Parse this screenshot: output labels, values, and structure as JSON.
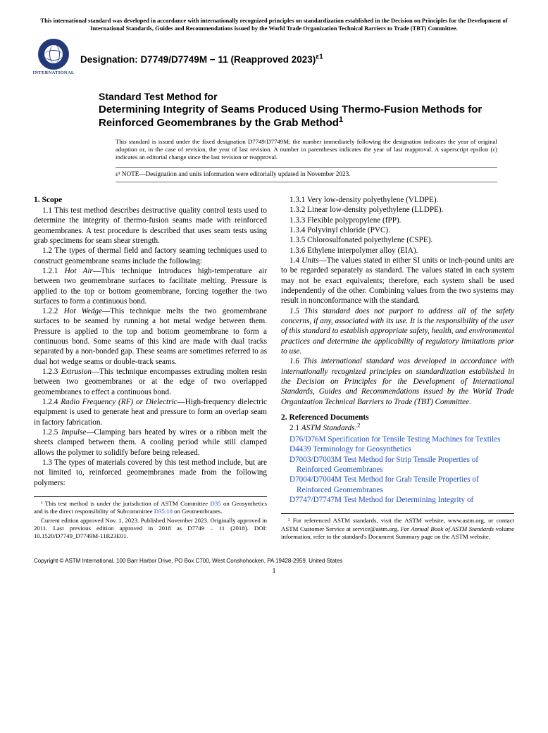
{
  "top_notice": "This international standard was developed in accordance with internationally recognized principles on standardization established in the Decision on Principles for the Development of International Standards, Guides and Recommendations issued by the World Trade Organization Technical Barriers to Trade (TBT) Committee.",
  "logo_text": "INTERNATIONAL",
  "designation": "Designation: D7749/D7749M − 11 (Reapproved 2023)",
  "designation_sup": "ε1",
  "title_lead": "Standard Test Method for",
  "title_main": "Determining Integrity of Seams Produced Using Thermo-Fusion Methods for Reinforced Geomembranes by the Grab Method",
  "title_sup": "1",
  "issued": "This standard is issued under the fixed designation D7749/D7749M; the number immediately following the designation indicates the year of original adoption or, in the case of revision, the year of last revision. A number in parentheses indicates the year of last reapproval. A superscript epsilon (ε) indicates an editorial change since the last revision or reapproval.",
  "eps_note": "ε¹ NOTE—Designation and units information were editorially updated in November 2023.",
  "sec1_head": "1. Scope",
  "p1_1": "1.1 This test method describes destructive quality control tests used to determine the integrity of thermo-fusion seams made with reinforced geomembranes. A test procedure is described that uses seam tests using grab specimens for seam shear strength.",
  "p1_2": "1.2 The types of thermal field and factory seaming techniques used to construct geomembrane seams include the following:",
  "p1_2_1_num": "1.2.1 ",
  "p1_2_1_label": "Hot Air",
  "p1_2_1_body": "—This technique introduces high-temperature air between two geomembrane surfaces to facilitate melting. Pressure is applied to the top or bottom geomembrane, forcing together the two surfaces to form a continuous bond.",
  "p1_2_2_num": "1.2.2 ",
  "p1_2_2_label": "Hot Wedge",
  "p1_2_2_body": "—This technique melts the two geomembrane surfaces to be seamed by running a hot metal wedge between them. Pressure is applied to the top and bottom geomembrane to form a continuous bond. Some seams of this kind are made with dual tracks separated by a non-bonded gap. These seams are sometimes referred to as dual hot wedge seams or double-track seams.",
  "p1_2_3_num": "1.2.3 ",
  "p1_2_3_label": "Extrusion",
  "p1_2_3_body": "—This technique encompasses extruding molten resin between two geomembranes or at the edge of two overlapped geomembranes to effect a continuous bond.",
  "p1_2_4_num": "1.2.4 ",
  "p1_2_4_label": "Radio Frequency (RF) or Dielectric",
  "p1_2_4_body": "—High-frequency dielectric equipment is used to generate heat and pressure to form an overlap seam in factory fabrication.",
  "p1_2_5_num": "1.2.5 ",
  "p1_2_5_label": "Impulse",
  "p1_2_5_body": "—Clamping bars heated by wires or a ribbon melt the sheets clamped between them. A cooling period while still clamped allows the polymer to solidify before being released.",
  "p1_3": "1.3 The types of materials covered by this test method include, but are not limited to, reinforced geomembranes made from the following polymers:",
  "p1_3_1": "1.3.1 Very low-density polyethylene (VLDPE).",
  "p1_3_2": "1.3.2 Linear low-density polyethylene (LLDPE).",
  "p1_3_3": "1.3.3 Flexible polypropylene (fPP).",
  "p1_3_4": "1.3.4 Polyvinyl chloride (PVC).",
  "p1_3_5": "1.3.5 Chlorosulfonated polyethylene (CSPE).",
  "p1_3_6": "1.3.6 Ethylene interpolymer alloy (EIA).",
  "p1_4_num": "1.4 ",
  "p1_4_label": "Units",
  "p1_4_body": "—The values stated in either SI units or inch-pound units are to be regarded separately as standard. The values stated in each system may not be exact equivalents; therefore, each system shall be used independently of the other. Combining values from the two systems may result in nonconformance with the standard.",
  "p1_5": "1.5 This standard does not purport to address all of the safety concerns, if any, associated with its use. It is the responsibility of the user of this standard to establish appropriate safety, health, and environmental practices and determine the applicability of regulatory limitations prior to use.",
  "p1_6": "1.6 This international standard was developed in accordance with internationally recognized principles on standardization established in the Decision on Principles for the Development of International Standards, Guides and Recommendations issued by the World Trade Organization Technical Barriers to Trade (TBT) Committee.",
  "sec2_head": "2. Referenced Documents",
  "p2_1_num": "2.1 ",
  "p2_1_label": "ASTM Standards:",
  "p2_1_sup": "2",
  "refs": [
    {
      "code": "D76/D76M",
      "title": "Specification for Tensile Testing Machines for Textiles"
    },
    {
      "code": "D4439",
      "title": "Terminology for Geosynthetics"
    },
    {
      "code": "D7003/D7003M",
      "title": "Test Method for Strip Tensile Properties of Reinforced Geomembranes"
    },
    {
      "code": "D7004/D7004M",
      "title": "Test Method for Grab Tensile Properties of Reinforced Geomembranes"
    },
    {
      "code": "D7747/D7747M",
      "title": "Test Method for Determining Integrity of"
    }
  ],
  "fn1_a": "¹ This test method is under the jurisdiction of ASTM Committee ",
  "fn1_link1": "D35",
  "fn1_b": " on Geosynthetics and is the direct responsibility of Subcommittee ",
  "fn1_link2": "D35.10",
  "fn1_c": " on Geomembranes.",
  "fn1_d": "Current edition approved Nov. 1, 2023. Published November 2023. Originally approved in 2011. Last previous edition approved in 2018 as D7749 – 11 (2018). DOI: 10.1520/D7749_D7749M-11R23E01.",
  "fn2": "² For referenced ASTM standards, visit the ASTM website, www.astm.org, or contact ASTM Customer Service at service@astm.org. For Annual Book of ASTM Standards volume information, refer to the standard's Document Summary page on the ASTM website.",
  "fn2_ital": "Annual Book of ASTM Standards",
  "copyright": "Copyright © ASTM International, 100 Barr Harbor Drive, PO Box C700, West Conshohocken, PA 19428-2959. United States",
  "pagenum": "1"
}
